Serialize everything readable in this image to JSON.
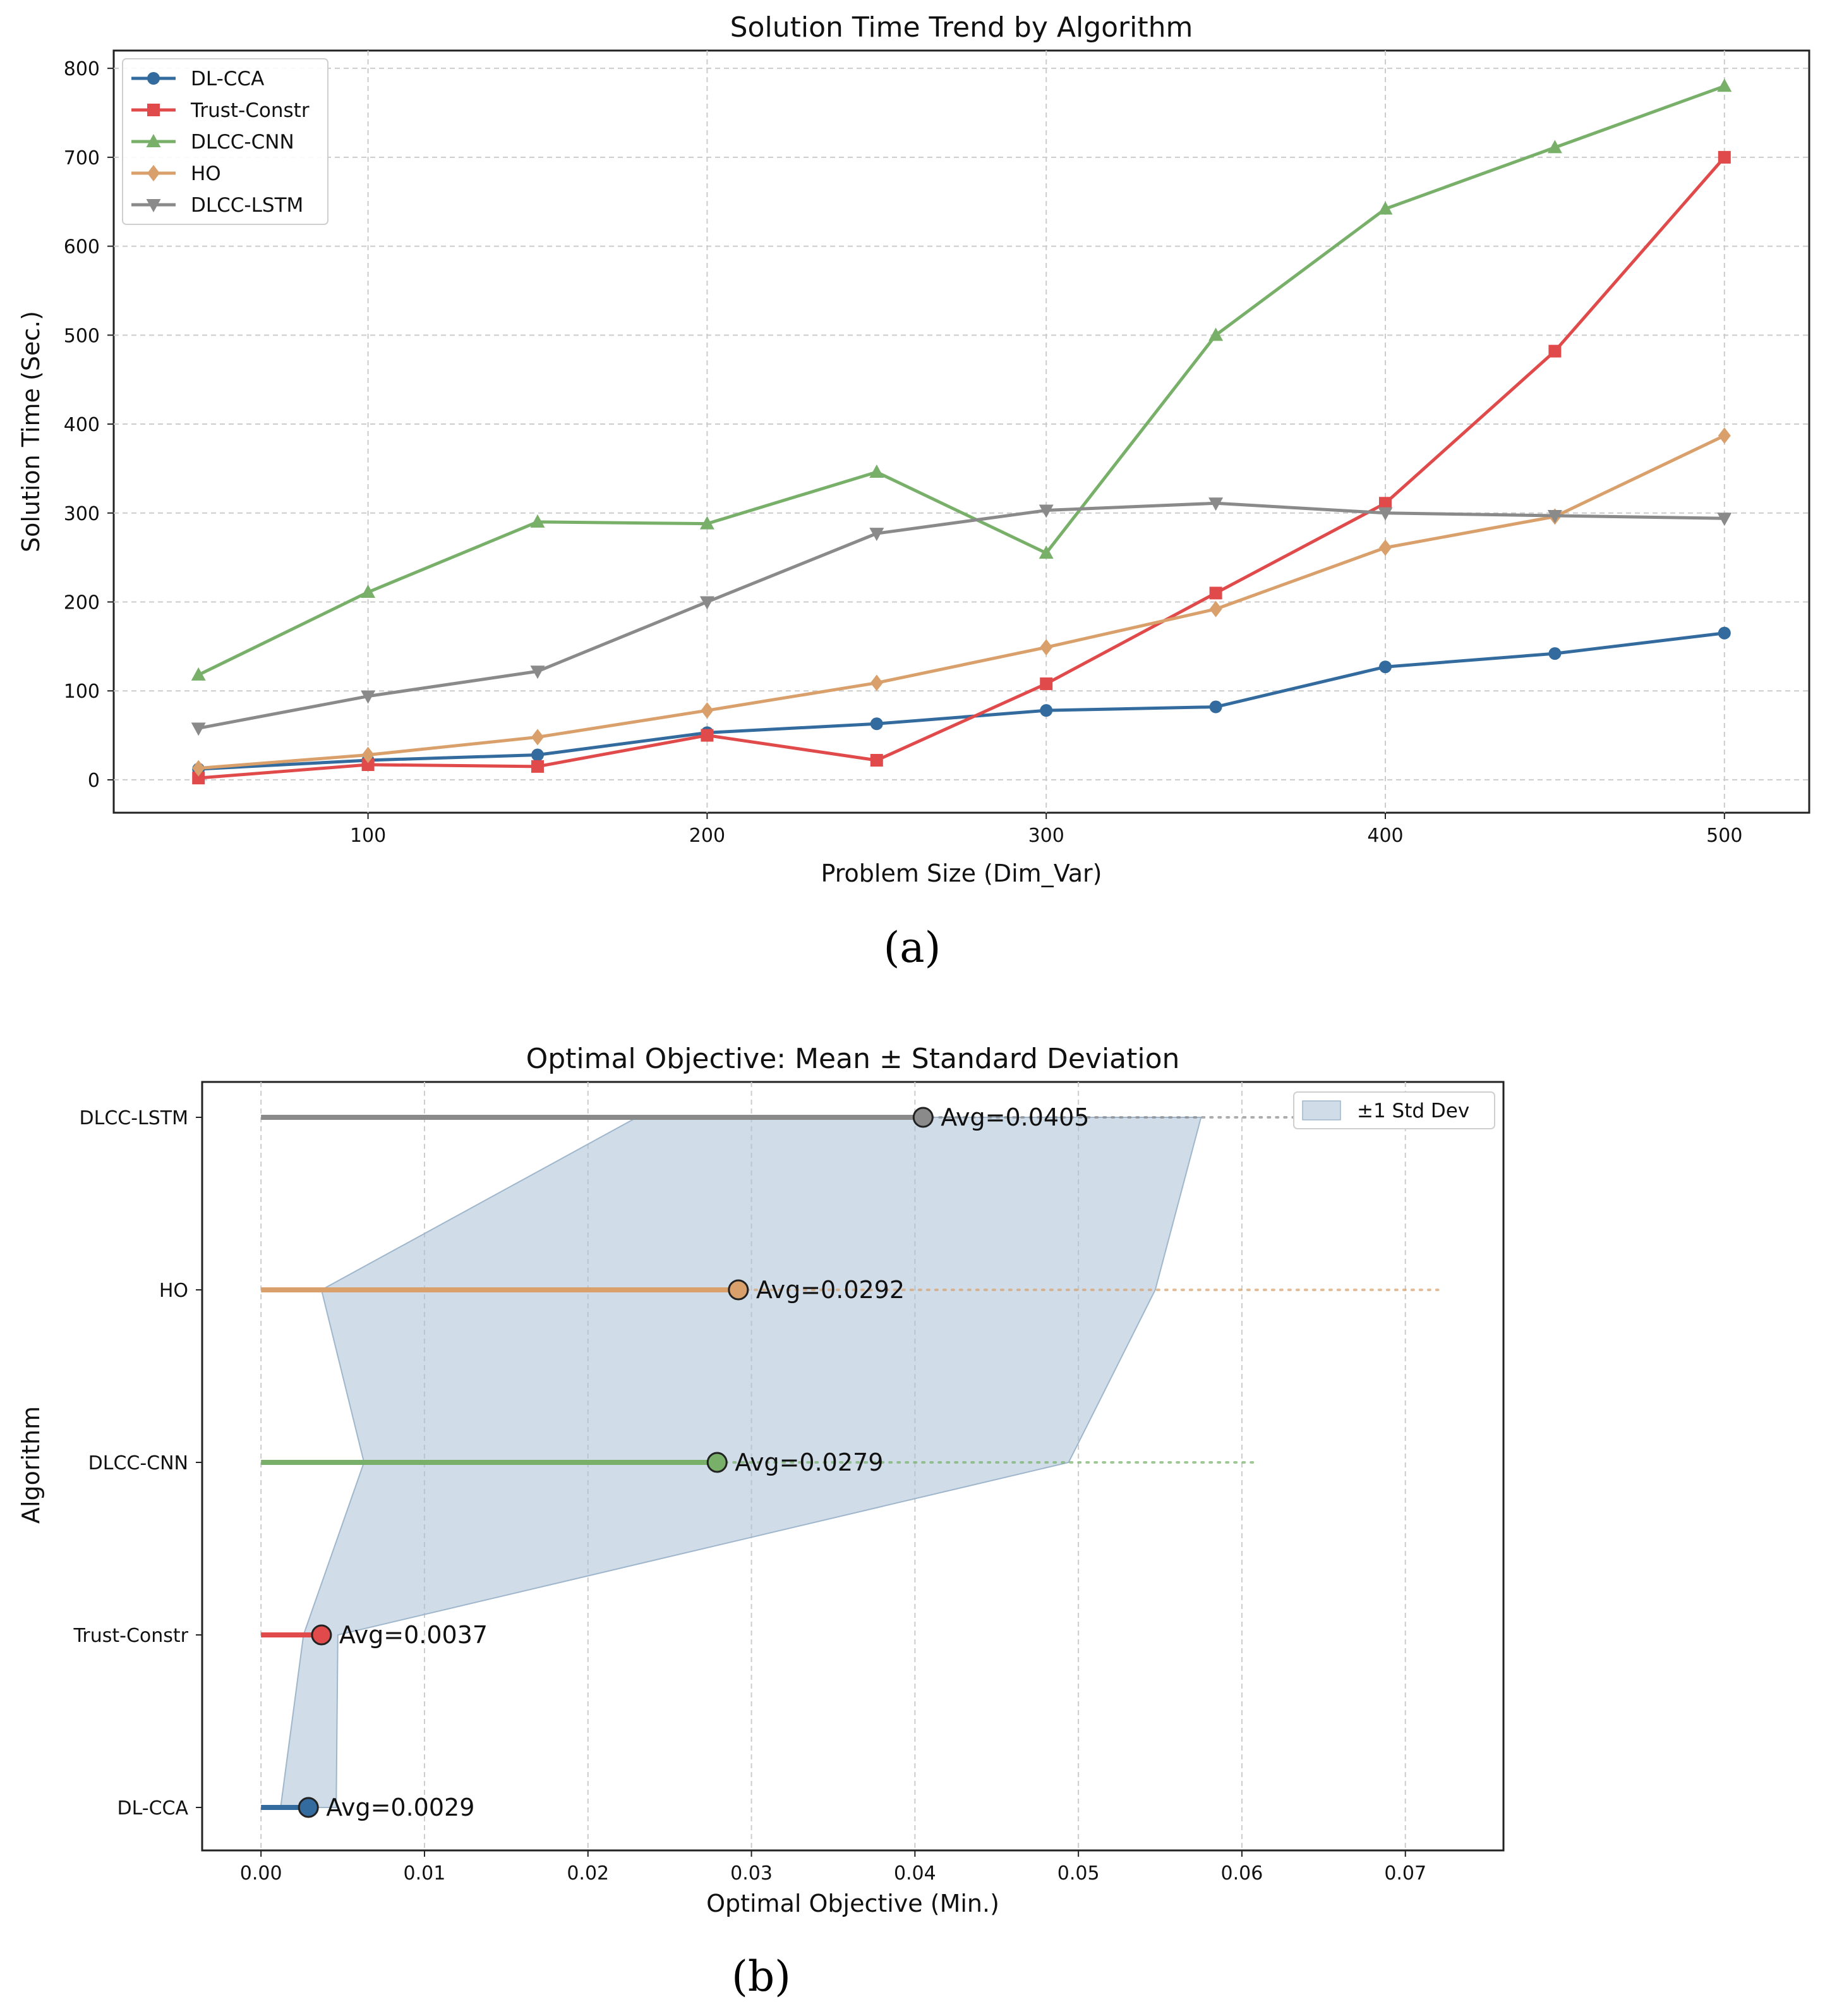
{
  "panels": [
    {
      "caption": "(a)",
      "chart_data": {
        "type": "line",
        "title": "Solution Time Trend by Algorithm",
        "xlabel": "Problem Size (Dim_Var)",
        "ylabel": "Solution Time (Sec.)",
        "xlim": [
          25,
          525
        ],
        "ylim": [
          -37,
          820
        ],
        "xticks": [
          100,
          200,
          300,
          400,
          500
        ],
        "yticks": [
          0,
          100,
          200,
          300,
          400,
          500,
          600,
          700,
          800
        ],
        "grid": true,
        "legend_position": "upper left",
        "x": [
          50,
          100,
          150,
          200,
          250,
          300,
          350,
          400,
          450,
          500
        ],
        "series": [
          {
            "name": "DL-CCA",
            "color": "#336b9e",
            "marker": "circle",
            "values": [
              12,
              22,
              28,
              53,
              63,
              78,
              82,
              127,
              142,
              165
            ]
          },
          {
            "name": "Trust-Constr",
            "color": "#e14a4a",
            "marker": "square",
            "values": [
              2,
              17,
              15,
              50,
              22,
              108,
              210,
              311,
              482,
              700
            ]
          },
          {
            "name": "DLCC-CNN",
            "color": "#78b06a",
            "marker": "triangle-up",
            "values": [
              118,
              211,
              290,
              288,
              346,
              255,
              500,
              642,
              711,
              780
            ]
          },
          {
            "name": "HO",
            "color": "#d9a06b",
            "marker": "diamond",
            "values": [
              13,
              28,
              48,
              78,
              109,
              149,
              192,
              261,
              296,
              387
            ]
          },
          {
            "name": "DLCC-LSTM",
            "color": "#8a8a8a",
            "marker": "triangle-down",
            "values": [
              58,
              94,
              122,
              200,
              277,
              303,
              311,
              300,
              297,
              294
            ]
          }
        ]
      }
    },
    {
      "caption": "(b)",
      "chart_data": {
        "type": "dot-range",
        "title": "Optimal Objective: Mean ± Standard Deviation",
        "xlabel": "Optimal Objective (Min.)",
        "ylabel": "Algorithm",
        "xlim": [
          -0.0036,
          0.076
        ],
        "xticks": [
          "0.00",
          "0.01",
          "0.02",
          "0.03",
          "0.04",
          "0.05",
          "0.06",
          "0.07"
        ],
        "grid": true,
        "legend_position": "upper right",
        "legend": "±1 Std Dev",
        "band_color": "#aac1d6",
        "categories": [
          "DL-CCA",
          "Trust-Constr",
          "DLCC-CNN",
          "HO",
          "DLCC-LSTM"
        ],
        "series": [
          {
            "name": "DL-CCA",
            "color": "#336b9e",
            "mean": 0.0029,
            "label": "Avg=0.0029",
            "band": [
              0.0012,
              0.0046
            ]
          },
          {
            "name": "Trust-Constr",
            "color": "#e14a4a",
            "mean": 0.0037,
            "label": "Avg=0.0037",
            "band": [
              0.0026,
              0.0047
            ]
          },
          {
            "name": "DLCC-CNN",
            "color": "#78b06a",
            "mean": 0.0279,
            "label": "Avg=0.0279",
            "band": [
              0.0063,
              0.0494
            ],
            "dotted_to": 0.061
          },
          {
            "name": "HO",
            "color": "#d9a06b",
            "mean": 0.0292,
            "label": "Avg=0.0292",
            "band": [
              0.0037,
              0.0547
            ],
            "dotted_to": 0.072
          },
          {
            "name": "DLCC-LSTM",
            "color": "#8a8a8a",
            "mean": 0.0405,
            "label": "Avg=0.0405",
            "band": [
              0.023,
              0.0575
            ],
            "dotted_to": 0.0635
          }
        ]
      }
    }
  ]
}
